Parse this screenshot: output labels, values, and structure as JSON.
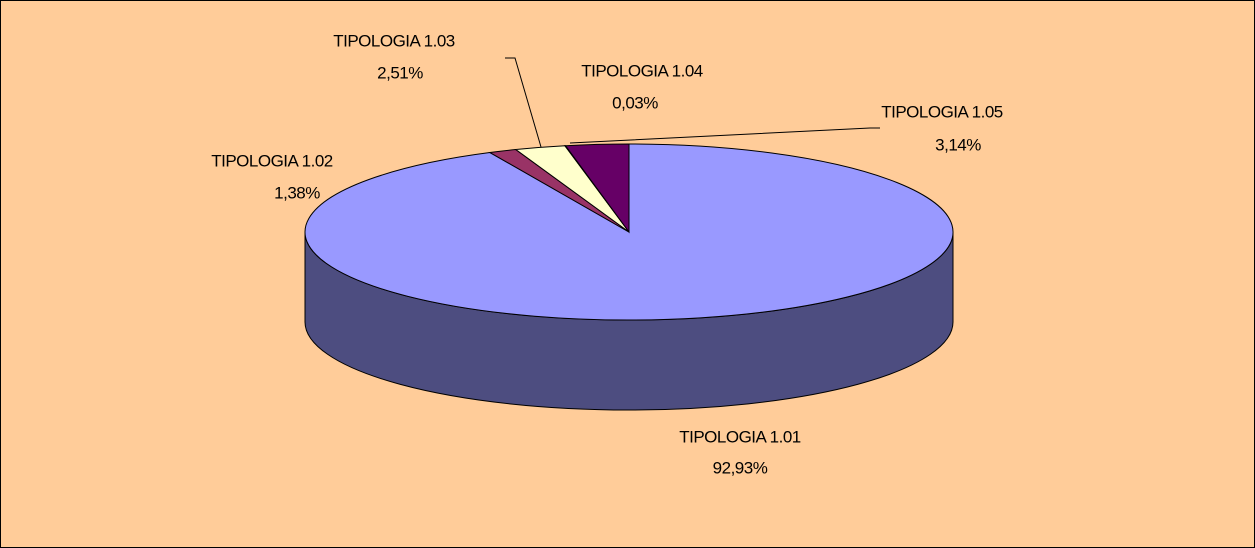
{
  "chart_data": {
    "type": "pie3d",
    "categories": [
      "TIPOLOGIA 1.01",
      "TIPOLOGIA 1.02",
      "TIPOLOGIA 1.03",
      "TIPOLOGIA 1.04",
      "TIPOLOGIA 1.05"
    ],
    "values": [
      92.93,
      1.38,
      2.51,
      0.03,
      3.14
    ],
    "value_labels": [
      "92,93%",
      "1,38%",
      "2,51%",
      "0,03%",
      "3,14%"
    ],
    "colors": [
      "#9999ff",
      "#993366",
      "#ffffcc",
      "#ccffff",
      "#660066"
    ]
  }
}
